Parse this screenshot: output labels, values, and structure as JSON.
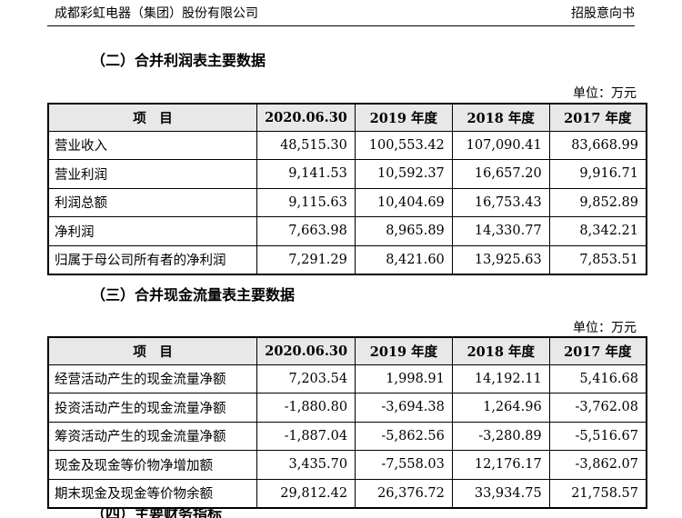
{
  "header": {
    "company": "成都彩虹电器（集团）股份有限公司",
    "doc": "招股意向书"
  },
  "section2": {
    "title": "（二）合并利润表主要数据",
    "unit": "单位：万元",
    "columns": [
      "项　目",
      "2020.06.30",
      "2019 年度",
      "2018 年度",
      "2017 年度"
    ],
    "rows": [
      {
        "label": "营业收入",
        "values": [
          "48,515.30",
          "100,553.42",
          "107,090.41",
          "83,668.99"
        ]
      },
      {
        "label": "营业利润",
        "values": [
          "9,141.53",
          "10,592.37",
          "16,657.20",
          "9,916.71"
        ]
      },
      {
        "label": "利润总额",
        "values": [
          "9,115.63",
          "10,404.69",
          "16,753.43",
          "9,852.89"
        ]
      },
      {
        "label": "净利润",
        "values": [
          "7,663.98",
          "8,965.89",
          "14,330.77",
          "8,342.21"
        ]
      },
      {
        "label": "归属于母公司所有者的净利润",
        "values": [
          "7,291.29",
          "8,421.60",
          "13,925.63",
          "7,853.51"
        ]
      }
    ]
  },
  "section3": {
    "title": "（三）合并现金流量表主要数据",
    "unit": "单位：万元",
    "columns": [
      "项　目",
      "2020.06.30",
      "2019 年度",
      "2018 年度",
      "2017 年度"
    ],
    "rows": [
      {
        "label": "经营活动产生的现金流量净额",
        "values": [
          "7,203.54",
          "1,998.91",
          "14,192.11",
          "5,416.68"
        ]
      },
      {
        "label": "投资活动产生的现金流量净额",
        "values": [
          "-1,880.80",
          "-3,694.38",
          "1,264.96",
          "-3,762.08"
        ]
      },
      {
        "label": "筹资活动产生的现金流量净额",
        "values": [
          "-1,887.04",
          "-5,862.56",
          "-3,280.89",
          "-5,516.67"
        ]
      },
      {
        "label": "现金及现金等价物净增加额",
        "values": [
          "3,435.70",
          "-7,558.03",
          "12,176.17",
          "-3,862.07"
        ]
      },
      {
        "label": "期末现金及现金等价物余额",
        "values": [
          "29,812.42",
          "26,376.72",
          "33,934.75",
          "21,758.57"
        ]
      }
    ]
  },
  "section4": {
    "title": "（四）主要财务指标"
  }
}
